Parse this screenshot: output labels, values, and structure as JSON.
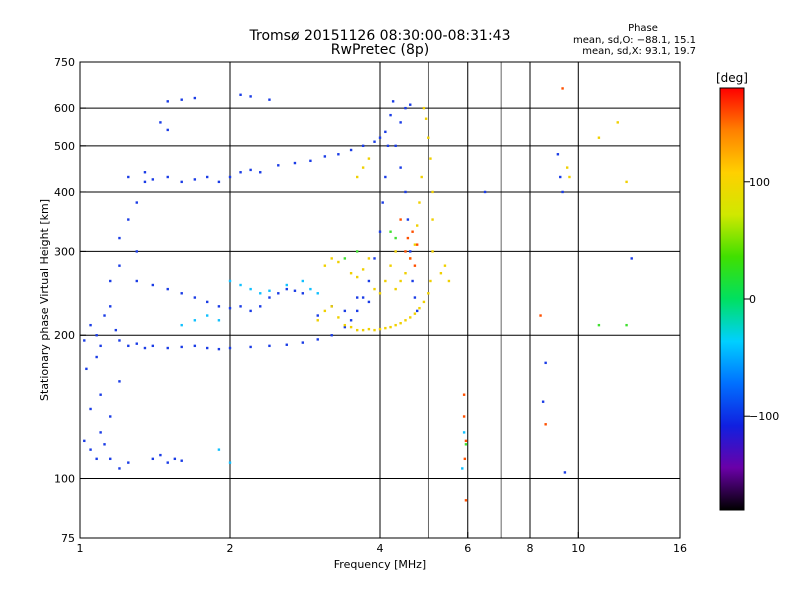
{
  "chart_data": {
    "type": "scatter",
    "title": "Tromsø 20151126 08:30:00-08:31:43",
    "subtitle": "RwPretec (8p)",
    "xlabel": "Frequency [MHz]",
    "ylabel": "Stationary phase Virtual Height [km]",
    "x_scale": "log",
    "y_scale": "log",
    "xlim": [
      1,
      16
    ],
    "ylim": [
      75,
      750
    ],
    "x_ticks": [
      1,
      2,
      4,
      6,
      8,
      10,
      16
    ],
    "x_tick_labels": [
      "1",
      "2",
      "4",
      "6",
      "8",
      "10",
      "16"
    ],
    "x_gridlines": [
      2,
      4,
      6,
      8,
      10
    ],
    "x_minor_gridlines": [
      5,
      7
    ],
    "y_ticks": [
      75,
      100,
      200,
      300,
      400,
      500,
      600,
      750
    ],
    "y_tick_labels": [
      "75",
      "100",
      "200",
      "300",
      "400",
      "500",
      "600",
      "750"
    ],
    "y_gridlines": [
      100,
      200,
      300,
      400,
      500,
      600
    ],
    "grid": true,
    "stats": {
      "title": "Phase",
      "line_o": "mean, sd,O: −88.1, 15.1",
      "line_x": "mean, sd,X:  93.1, 19.7"
    },
    "colorbar": {
      "label": "[deg]",
      "range": [
        -180,
        180
      ],
      "ticks": [
        100,
        0,
        -100
      ],
      "tick_labels": [
        "100",
        "0",
        "−100"
      ],
      "colors": [
        "#000000",
        "#6a00a8",
        "#1020e0",
        "#0070ff",
        "#00d0ff",
        "#00e060",
        "#40e000",
        "#d0e800",
        "#ffd000",
        "#ff8000",
        "#ff0000"
      ]
    },
    "series": [
      {
        "mode": "O",
        "phase_deg": -100,
        "color": "#1a3ce6",
        "points": [
          [
            1.02,
            195
          ],
          [
            1.05,
            210
          ],
          [
            1.08,
            200
          ],
          [
            1.1,
            190
          ],
          [
            1.12,
            220
          ],
          [
            1.15,
            230
          ],
          [
            1.18,
            205
          ],
          [
            1.2,
            195
          ],
          [
            1.25,
            190
          ],
          [
            1.3,
            192
          ],
          [
            1.35,
            188
          ],
          [
            1.4,
            190
          ],
          [
            1.5,
            188
          ],
          [
            1.6,
            189
          ],
          [
            1.7,
            190
          ],
          [
            1.8,
            188
          ],
          [
            1.9,
            187
          ],
          [
            2.0,
            188
          ],
          [
            2.2,
            189
          ],
          [
            2.4,
            190
          ],
          [
            2.6,
            191
          ],
          [
            2.8,
            193
          ],
          [
            3.0,
            196
          ],
          [
            3.2,
            200
          ],
          [
            3.4,
            208
          ],
          [
            3.5,
            215
          ],
          [
            3.6,
            225
          ],
          [
            3.7,
            240
          ],
          [
            3.8,
            260
          ],
          [
            3.9,
            290
          ],
          [
            4.0,
            330
          ],
          [
            4.05,
            380
          ],
          [
            4.1,
            430
          ],
          [
            4.15,
            500
          ],
          [
            4.2,
            580
          ],
          [
            4.25,
            620
          ],
          [
            1.3,
            260
          ],
          [
            1.4,
            255
          ],
          [
            1.5,
            250
          ],
          [
            1.6,
            245
          ],
          [
            1.7,
            240
          ],
          [
            1.8,
            235
          ],
          [
            1.9,
            230
          ],
          [
            2.0,
            228
          ],
          [
            2.1,
            230
          ],
          [
            2.2,
            225
          ],
          [
            2.3,
            230
          ],
          [
            2.4,
            240
          ],
          [
            2.5,
            245
          ],
          [
            2.6,
            250
          ],
          [
            2.7,
            248
          ],
          [
            2.8,
            245
          ],
          [
            1.2,
            320
          ],
          [
            1.25,
            350
          ],
          [
            1.3,
            380
          ],
          [
            1.35,
            420
          ],
          [
            1.3,
            300
          ],
          [
            1.2,
            280
          ],
          [
            1.15,
            260
          ],
          [
            1.25,
            430
          ],
          [
            1.35,
            440
          ],
          [
            1.4,
            425
          ],
          [
            1.5,
            430
          ],
          [
            1.6,
            420
          ],
          [
            1.7,
            425
          ],
          [
            1.8,
            430
          ],
          [
            1.9,
            420
          ],
          [
            2.0,
            430
          ],
          [
            2.1,
            440
          ],
          [
            2.2,
            445
          ],
          [
            2.3,
            440
          ],
          [
            2.5,
            455
          ],
          [
            2.7,
            460
          ],
          [
            2.9,
            465
          ],
          [
            3.1,
            475
          ],
          [
            3.3,
            480
          ],
          [
            3.5,
            490
          ],
          [
            3.7,
            500
          ],
          [
            3.9,
            510
          ],
          [
            4.0,
            520
          ],
          [
            4.1,
            535
          ],
          [
            1.5,
            620
          ],
          [
            1.6,
            625
          ],
          [
            1.7,
            630
          ],
          [
            2.1,
            640
          ],
          [
            2.2,
            635
          ],
          [
            2.4,
            625
          ],
          [
            1.45,
            560
          ],
          [
            1.5,
            540
          ],
          [
            1.02,
            120
          ],
          [
            1.05,
            115
          ],
          [
            1.08,
            110
          ],
          [
            1.1,
            125
          ],
          [
            1.12,
            118
          ],
          [
            1.15,
            110
          ],
          [
            1.2,
            105
          ],
          [
            1.25,
            108
          ],
          [
            1.05,
            140
          ],
          [
            1.1,
            150
          ],
          [
            1.15,
            135
          ],
          [
            1.2,
            160
          ],
          [
            1.03,
            170
          ],
          [
            1.08,
            180
          ],
          [
            1.4,
            110
          ],
          [
            1.45,
            112
          ],
          [
            1.5,
            108
          ],
          [
            1.55,
            110
          ],
          [
            1.6,
            109
          ],
          [
            3.0,
            220
          ],
          [
            3.2,
            230
          ],
          [
            3.4,
            225
          ],
          [
            3.6,
            240
          ],
          [
            3.8,
            235
          ],
          [
            4.3,
            500
          ],
          [
            4.4,
            450
          ],
          [
            4.5,
            400
          ],
          [
            4.55,
            350
          ],
          [
            4.6,
            300
          ],
          [
            4.65,
            260
          ],
          [
            4.7,
            240
          ],
          [
            4.75,
            225
          ],
          [
            4.4,
            560
          ],
          [
            4.5,
            600
          ],
          [
            4.6,
            610
          ],
          [
            9.1,
            480
          ],
          [
            9.2,
            430
          ],
          [
            9.3,
            400
          ],
          [
            8.6,
            175
          ],
          [
            8.5,
            145
          ],
          [
            9.4,
            103
          ],
          [
            12.8,
            290
          ],
          [
            6.5,
            400
          ]
        ]
      },
      {
        "mode": "X",
        "phase_deg": 100,
        "color": "#f0d000",
        "points": [
          [
            3.0,
            215
          ],
          [
            3.1,
            225
          ],
          [
            3.2,
            230
          ],
          [
            3.3,
            218
          ],
          [
            3.4,
            210
          ],
          [
            3.5,
            208
          ],
          [
            3.6,
            205
          ],
          [
            3.7,
            205
          ],
          [
            3.8,
            206
          ],
          [
            3.9,
            205
          ],
          [
            4.0,
            206
          ],
          [
            4.1,
            207
          ],
          [
            4.2,
            208
          ],
          [
            4.3,
            210
          ],
          [
            4.4,
            212
          ],
          [
            4.5,
            215
          ],
          [
            4.6,
            218
          ],
          [
            4.7,
            222
          ],
          [
            4.8,
            228
          ],
          [
            4.9,
            235
          ],
          [
            5.0,
            245
          ],
          [
            5.05,
            260
          ],
          [
            5.1,
            300
          ],
          [
            5.1,
            350
          ],
          [
            5.1,
            400
          ],
          [
            5.05,
            470
          ],
          [
            5.0,
            520
          ],
          [
            4.95,
            570
          ],
          [
            4.9,
            600
          ],
          [
            4.3,
            250
          ],
          [
            4.4,
            260
          ],
          [
            4.5,
            270
          ],
          [
            4.6,
            290
          ],
          [
            4.7,
            310
          ],
          [
            4.75,
            340
          ],
          [
            4.8,
            380
          ],
          [
            4.85,
            430
          ],
          [
            3.1,
            280
          ],
          [
            3.2,
            290
          ],
          [
            3.3,
            285
          ],
          [
            3.5,
            270
          ],
          [
            3.6,
            265
          ],
          [
            3.7,
            275
          ],
          [
            3.8,
            290
          ],
          [
            3.9,
            250
          ],
          [
            4.0,
            245
          ],
          [
            4.1,
            260
          ],
          [
            4.2,
            280
          ],
          [
            4.3,
            300
          ],
          [
            5.3,
            270
          ],
          [
            5.4,
            280
          ],
          [
            5.5,
            260
          ],
          [
            3.6,
            430
          ],
          [
            3.7,
            450
          ],
          [
            3.8,
            470
          ],
          [
            9.5,
            450
          ],
          [
            9.6,
            430
          ],
          [
            11.0,
            520
          ],
          [
            12.0,
            560
          ],
          [
            12.5,
            420
          ]
        ]
      },
      {
        "mode": "X",
        "phase_deg": 160,
        "color": "#ff5000",
        "points": [
          [
            4.5,
            300
          ],
          [
            4.55,
            320
          ],
          [
            4.6,
            290
          ],
          [
            4.65,
            330
          ],
          [
            4.7,
            280
          ],
          [
            4.4,
            350
          ],
          [
            4.75,
            310
          ],
          [
            5.9,
            150
          ],
          [
            5.9,
            135
          ],
          [
            5.95,
            120
          ],
          [
            5.92,
            110
          ],
          [
            5.95,
            90
          ],
          [
            8.6,
            130
          ],
          [
            8.4,
            220
          ],
          [
            9.3,
            660
          ]
        ]
      },
      {
        "mode": "O",
        "phase_deg": -20,
        "color": "#10c0ff",
        "points": [
          [
            2.0,
            260
          ],
          [
            2.1,
            255
          ],
          [
            2.2,
            250
          ],
          [
            2.3,
            245
          ],
          [
            2.4,
            248
          ],
          [
            2.6,
            255
          ],
          [
            2.8,
            260
          ],
          [
            2.9,
            250
          ],
          [
            3.0,
            245
          ],
          [
            1.6,
            210
          ],
          [
            1.7,
            215
          ],
          [
            1.8,
            220
          ],
          [
            1.9,
            215
          ],
          [
            5.9,
            125
          ],
          [
            5.85,
            105
          ],
          [
            1.9,
            115
          ],
          [
            2.0,
            108
          ]
        ]
      },
      {
        "mode": "X",
        "phase_deg": 40,
        "color": "#40e030",
        "points": [
          [
            3.4,
            290
          ],
          [
            3.6,
            300
          ],
          [
            4.2,
            330
          ],
          [
            4.3,
            320
          ],
          [
            5.95,
            118
          ],
          [
            11.0,
            210
          ],
          [
            12.5,
            210
          ]
        ]
      }
    ]
  }
}
